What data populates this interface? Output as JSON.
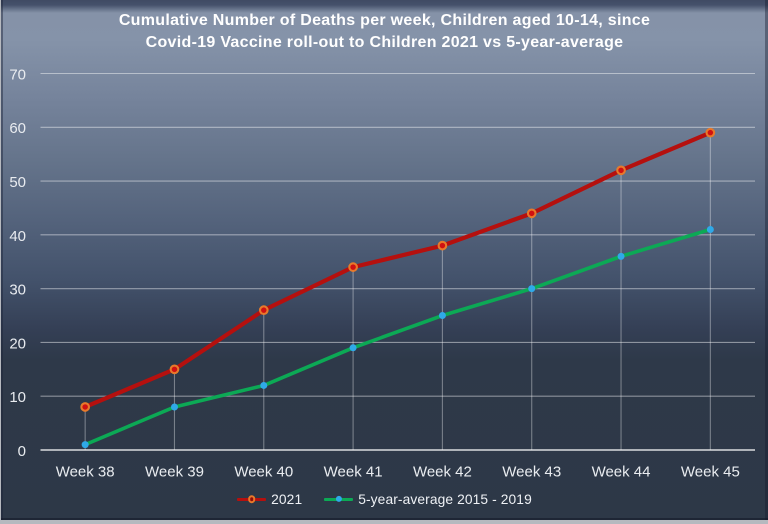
{
  "chart_data": {
    "type": "line",
    "title_line1": "Cumulative Number of Deaths per week, Children aged 10-14, since",
    "title_line2": "Covid-19 Vaccine roll-out to Children 2021 vs 5-year-average",
    "categories": [
      "Week 38",
      "Week 39",
      "Week 40",
      "Week 41",
      "Week 42",
      "Week 43",
      "Week 44",
      "Week 45"
    ],
    "series": [
      {
        "name": "2021",
        "values": [
          8,
          15,
          26,
          34,
          38,
          44,
          52,
          59
        ],
        "color": "#b5100e",
        "marker": {
          "shape": "circle",
          "fill": "#d01111",
          "ring": "#e8792a"
        }
      },
      {
        "name": "5-year-average 2015 - 2019",
        "values": [
          1,
          8,
          12,
          19,
          25,
          30,
          36,
          41
        ],
        "color": "#0ca955",
        "marker": {
          "shape": "circle",
          "fill": "#2fa9e8"
        }
      }
    ],
    "xlabel": "",
    "ylabel": "",
    "ylim": [
      0,
      70
    ],
    "ytick_step": 10,
    "yticks": [
      "0",
      "10",
      "20",
      "30",
      "40",
      "50",
      "60",
      "70"
    ],
    "grid": "horizontal gridlines plus vertical drop-lines from 2021 series to axis",
    "legend_position": "bottom-center",
    "colors": {
      "red_series": "#b5100e",
      "red_marker_ring": "#e8792a",
      "red_marker_center": "#d01111",
      "green_series": "#0ca955",
      "blue_marker": "#2fa9e8",
      "gridline": "rgba(255,255,255,0.45)",
      "axis_line": "rgba(255,255,255,0.62)",
      "label_text": "#e9ecf0",
      "title_text": "#ffffff",
      "background_top": "#8593a9",
      "background_bottom": "#2d3847"
    }
  }
}
